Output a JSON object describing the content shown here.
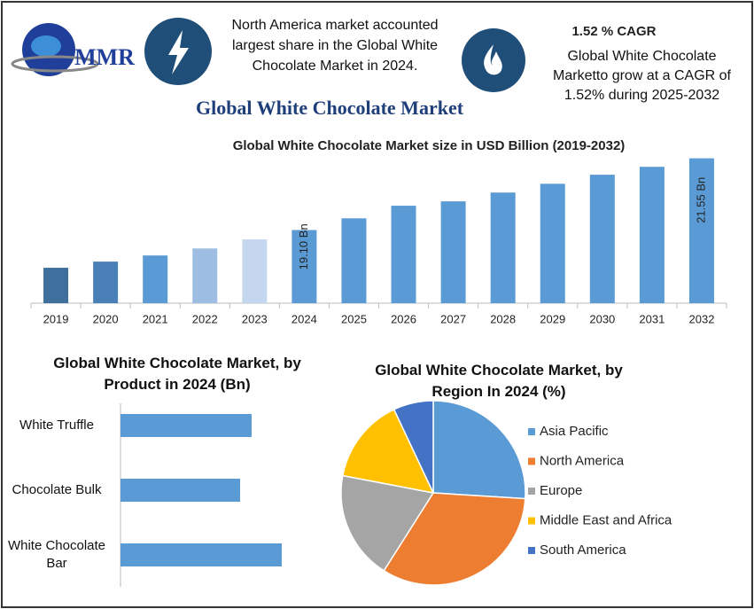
{
  "header": {
    "logo": "MMR",
    "title": "Global White Chocolate Market",
    "note_left": "North America market accounted largest share in the Global White Chocolate Market in 2024.",
    "cagr": "1.52 % CAGR",
    "note_right": "Global White Chocolate Marketto grow at a CAGR of 1.52% during 2025-2032"
  },
  "chart_data": [
    {
      "type": "bar",
      "title": "Global White Chocolate Market size in USD Billion (2019-2032)",
      "categories": [
        "2019",
        "2020",
        "2021",
        "2022",
        "2023",
        "2024",
        "2025",
        "2026",
        "2027",
        "2028",
        "2029",
        "2030",
        "2031",
        "2032"
      ],
      "values": [
        17.81,
        18.02,
        18.23,
        18.47,
        18.78,
        19.1,
        19.5,
        19.93,
        20.08,
        20.38,
        20.68,
        20.99,
        21.26,
        21.55
      ],
      "value_labels": [
        null,
        null,
        null,
        null,
        null,
        "19.10 Bn",
        null,
        null,
        null,
        null,
        null,
        null,
        null,
        "21.55 Bn"
      ],
      "colors": [
        "#3f6f9c",
        "#4a80b8",
        "#5b9bd5",
        "#9dbde3",
        "#c5d6ef",
        "#5b9bd5",
        "#5b9bd5",
        "#5b9bd5",
        "#5b9bd5",
        "#5b9bd5",
        "#5b9bd5",
        "#5b9bd5",
        "#5b9bd5",
        "#5b9bd5"
      ],
      "ylim": [
        16.6,
        21.75
      ]
    },
    {
      "type": "hbar",
      "title": "Global White Chocolate Market, by Product in 2024 (Bn)",
      "categories": [
        "White Truffle",
        "Chocolate Bulk",
        "White Chocolate Bar"
      ],
      "values": [
        1.48,
        1.35,
        1.82
      ],
      "color": "#5b9bd5",
      "xlim": [
        0,
        2.2
      ]
    },
    {
      "type": "pie",
      "title": "Global White Chocolate Market, by Region In 2024 (%)",
      "categories": [
        "Asia Pacific",
        "North America",
        "Europe",
        "Middle East and Africa",
        "South America"
      ],
      "values": [
        26,
        33,
        19,
        15,
        7
      ],
      "colors": [
        "#5b9bd5",
        "#ed7d31",
        "#a5a5a5",
        "#ffc000",
        "#4472c4"
      ],
      "legend": "right"
    }
  ]
}
